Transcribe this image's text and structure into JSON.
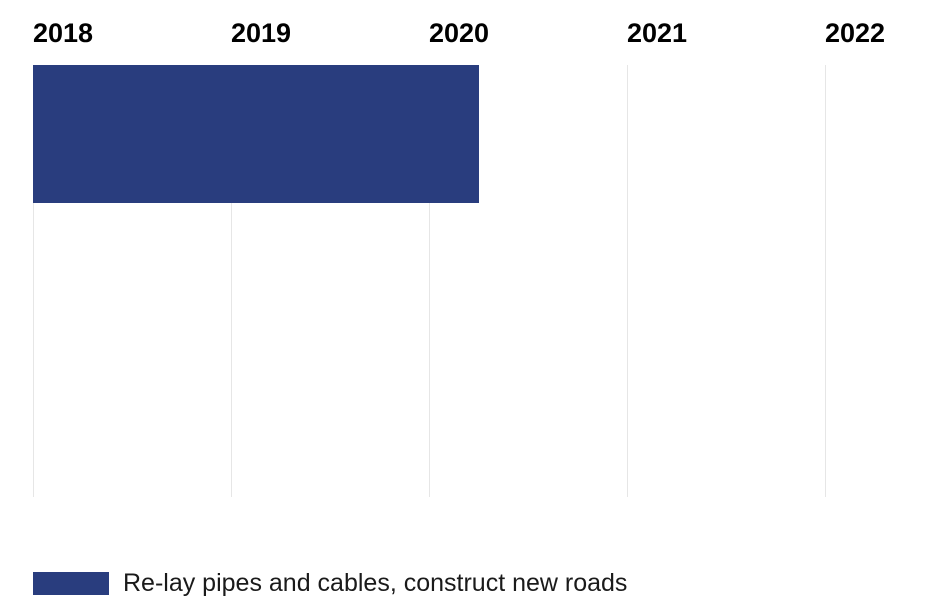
{
  "chart_data": {
    "type": "gantt",
    "title": "",
    "x_axis": {
      "tick_labels": [
        "2018",
        "2019",
        "2020",
        "2021",
        "2022"
      ],
      "tick_values": [
        2018,
        2019,
        2020,
        2021,
        2022
      ],
      "range": [
        2018,
        2022.58
      ],
      "gridlines": true,
      "gridline_color": "#e6e6e6",
      "tick_label_color": "#000000"
    },
    "series": [
      {
        "name": "Re-lay pipes and cables, construct new roads",
        "start": 2018.0,
        "end": 2020.25,
        "color": "#293d7e"
      }
    ],
    "legend_position": "bottom-left"
  },
  "legend": {
    "entries": [
      {
        "label": "Re-lay pipes and cables, construct new roads",
        "swatch_color": "#293d7e"
      }
    ]
  },
  "colors": {
    "background": "#ffffff",
    "bar": "#293d7e",
    "gridline": "#e6e6e6",
    "tick_label": "#000000",
    "legend_text": "#1a1a1a"
  }
}
